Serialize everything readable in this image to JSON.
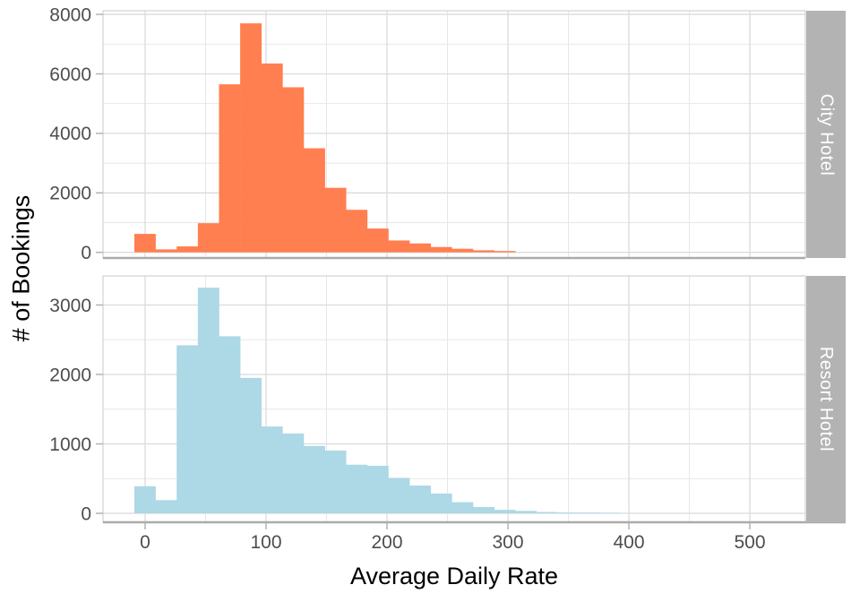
{
  "chart_data": {
    "type": "bar",
    "subtype": "faceted-histogram",
    "title": "",
    "xlabel": "Average Daily Rate",
    "ylabel": "# of Bookings",
    "legend": "none",
    "grid": "on",
    "bin_start": -8.9,
    "bin_width": 17.5,
    "x_range": [
      -34.8,
      545.9
    ],
    "x_ticks": [
      0,
      100,
      200,
      300,
      400,
      500
    ],
    "x_minor_ticks": [
      50,
      150,
      250,
      350,
      450
    ],
    "facets": [
      {
        "name": "City Hotel",
        "color": "#FF7F50",
        "y_range": [
          -190,
          8123
        ],
        "y_ticks": [
          0,
          2000,
          4000,
          6000,
          8000
        ],
        "y_minor_ticks": [
          1000,
          3000,
          5000,
          7000
        ],
        "counts": [
          620,
          100,
          200,
          980,
          5650,
          7700,
          6350,
          5550,
          3500,
          2170,
          1430,
          800,
          400,
          300,
          180,
          120,
          70,
          45
        ]
      },
      {
        "name": "Resort Hotel",
        "color": "#ADD8E6",
        "y_range": [
          -129,
          3419
        ],
        "y_ticks": [
          0,
          1000,
          2000,
          3000
        ],
        "y_minor_ticks": [
          500,
          1500,
          2500
        ],
        "counts": [
          390,
          190,
          2420,
          3250,
          2550,
          1950,
          1250,
          1150,
          970,
          905,
          700,
          685,
          510,
          400,
          285,
          160,
          90,
          50,
          35,
          18,
          12,
          10,
          8
        ]
      }
    ],
    "colors": {
      "strip_fill": "#b3b3b3",
      "strip_text": "#ffffff",
      "panel_border": "#c9c9c9",
      "axis_line": "#ababab",
      "grid_major": "#dbdbdb",
      "grid_minor": "#e7e7e7",
      "tick_mark": "#b3b3b3",
      "tick_label": "#4d4d4d",
      "axis_title": "#000000",
      "background": "#ffffff"
    }
  }
}
